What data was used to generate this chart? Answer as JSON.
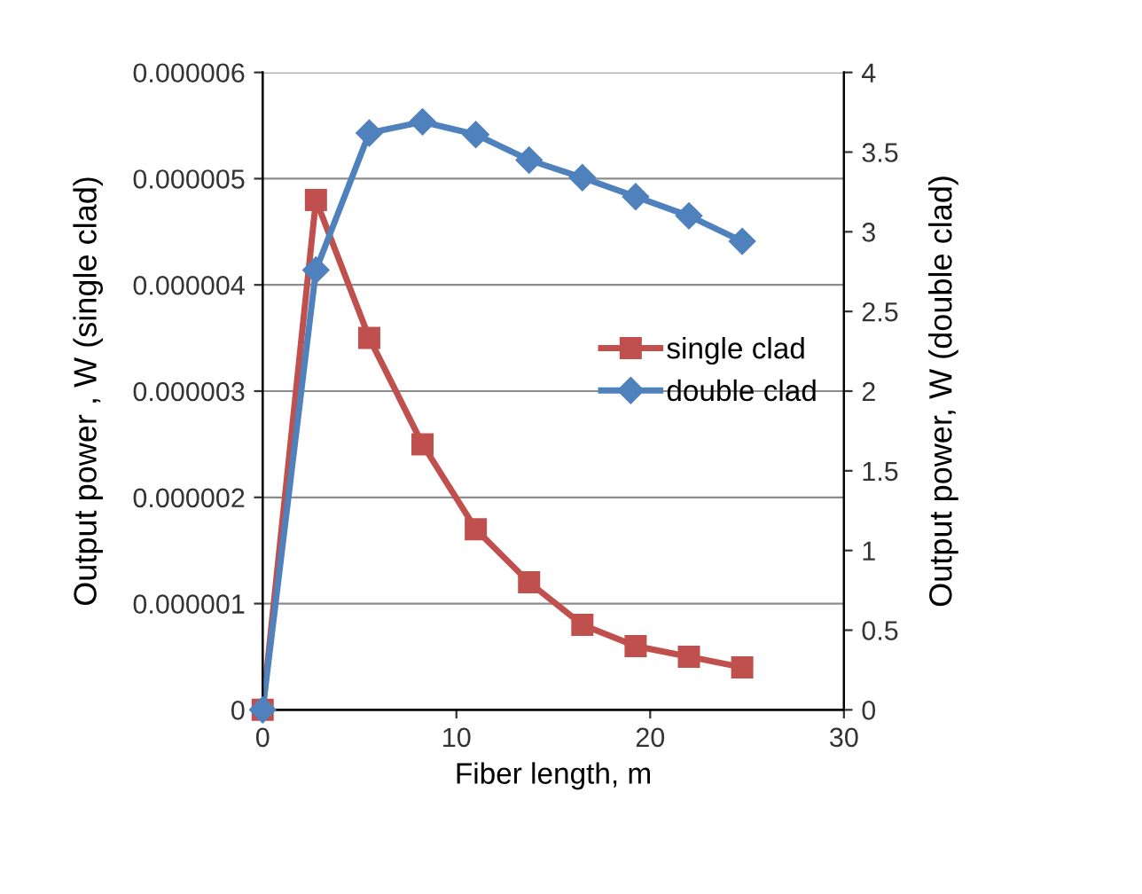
{
  "chart_data": {
    "type": "line",
    "xlabel": "Fiber length, m",
    "ylabel": "Output power , W (single clad)",
    "y2label": "Output power, W (double clad)",
    "series": [
      {
        "name": "single clad",
        "color": "#c0504d",
        "marker": "square",
        "x": [
          0,
          2.75,
          5.5,
          8.25,
          11,
          13.75,
          16.5,
          19.25,
          22,
          24.75
        ],
        "values": [
          0,
          4.8e-06,
          3.5e-06,
          2.5e-06,
          1.7e-06,
          1.2e-06,
          8e-07,
          6e-07,
          5e-07,
          4e-07
        ]
      },
      {
        "name": "double clad",
        "color": "#4f81bd",
        "marker": "diamond",
        "axis": "y2",
        "x": [
          0,
          2.75,
          5.5,
          8.25,
          11,
          13.75,
          16.5,
          19.25,
          22,
          24.75
        ],
        "values": [
          0,
          2.76,
          3.62,
          3.69,
          3.61,
          3.45,
          3.34,
          3.22,
          3.1,
          2.94
        ]
      }
    ],
    "xlim": [
      0,
      30
    ],
    "xticks": [
      0,
      10,
      20,
      30
    ],
    "ylim": [
      0,
      6e-06
    ],
    "yticks": [
      {
        "value": 0,
        "label": "0"
      },
      {
        "value": 1e-06,
        "label": "0.000001"
      },
      {
        "value": 2e-06,
        "label": "0.000002"
      },
      {
        "value": 3e-06,
        "label": "0.000003"
      },
      {
        "value": 4e-06,
        "label": "0.000004"
      },
      {
        "value": 5e-06,
        "label": "0.000005"
      },
      {
        "value": 6e-06,
        "label": "0.000006"
      }
    ],
    "y2lim": [
      0,
      4
    ],
    "y2ticks": [
      0,
      0.5,
      1,
      1.5,
      2,
      2.5,
      3,
      3.5,
      4
    ],
    "grid": "y",
    "legend": "right",
    "line_style": "solid"
  }
}
